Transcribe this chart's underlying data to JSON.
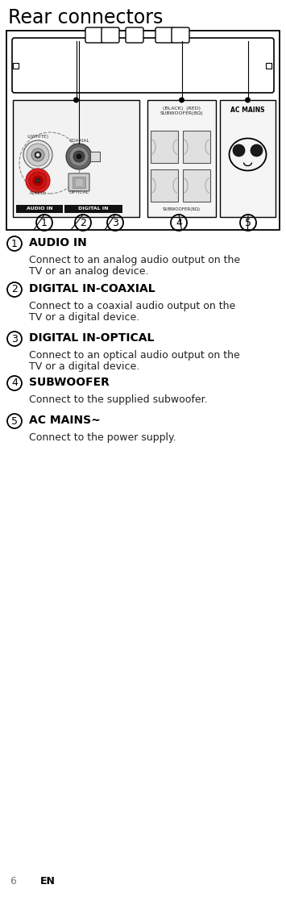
{
  "title": "Rear connectors",
  "bg_color": "#ffffff",
  "border_color": "#000000",
  "items": [
    {
      "number": "1",
      "heading": "AUDIO IN",
      "desc": "Connect to an analog audio output on the\nTV or an analog device."
    },
    {
      "number": "2",
      "heading": "DIGITAL IN-COAXIAL",
      "desc": "Connect to a coaxial audio output on the\nTV or a digital device."
    },
    {
      "number": "3",
      "heading": "DIGITAL IN-OPTICAL",
      "desc": "Connect to an optical audio output on the\nTV or a digital device."
    },
    {
      "number": "4",
      "heading": "SUBWOOFER",
      "desc": "Connect to the supplied subwoofer."
    },
    {
      "number": "5",
      "heading": "AC MAINS~",
      "desc": "Connect to the power supply."
    }
  ],
  "footer_number": "6",
  "footer_text": "EN",
  "text_color": "#222222",
  "heading_color": "#000000",
  "title_fontsize": 17,
  "heading_fontsize": 10,
  "desc_fontsize": 9,
  "footer_fontsize": 9
}
